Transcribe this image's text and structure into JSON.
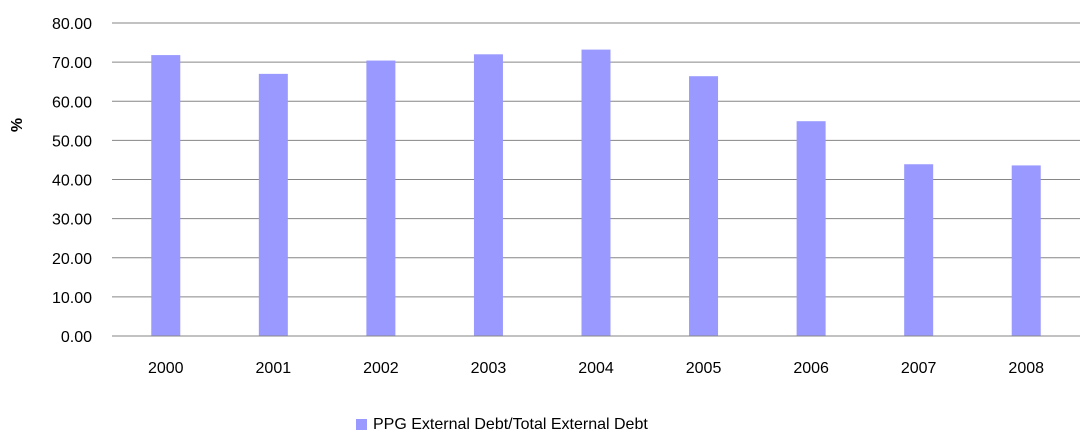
{
  "chart_data": {
    "type": "bar",
    "title": "",
    "xlabel": "",
    "ylabel": "%",
    "ylim": [
      0,
      80
    ],
    "ytick_step": 10,
    "ytick_labels": [
      "0.00",
      "10.00",
      "20.00",
      "30.00",
      "40.00",
      "50.00",
      "60.00",
      "70.00",
      "80.00"
    ],
    "grid": true,
    "legend_position": "bottom",
    "categories": [
      "2000",
      "2001",
      "2002",
      "2003",
      "2004",
      "2005",
      "2006",
      "2007",
      "2008"
    ],
    "series": [
      {
        "name": "PPG External Debt/Total External Debt",
        "color": "#9999ff",
        "values": [
          71.8,
          67.0,
          70.4,
          72.0,
          73.2,
          66.4,
          54.9,
          43.9,
          43.6
        ]
      }
    ]
  }
}
